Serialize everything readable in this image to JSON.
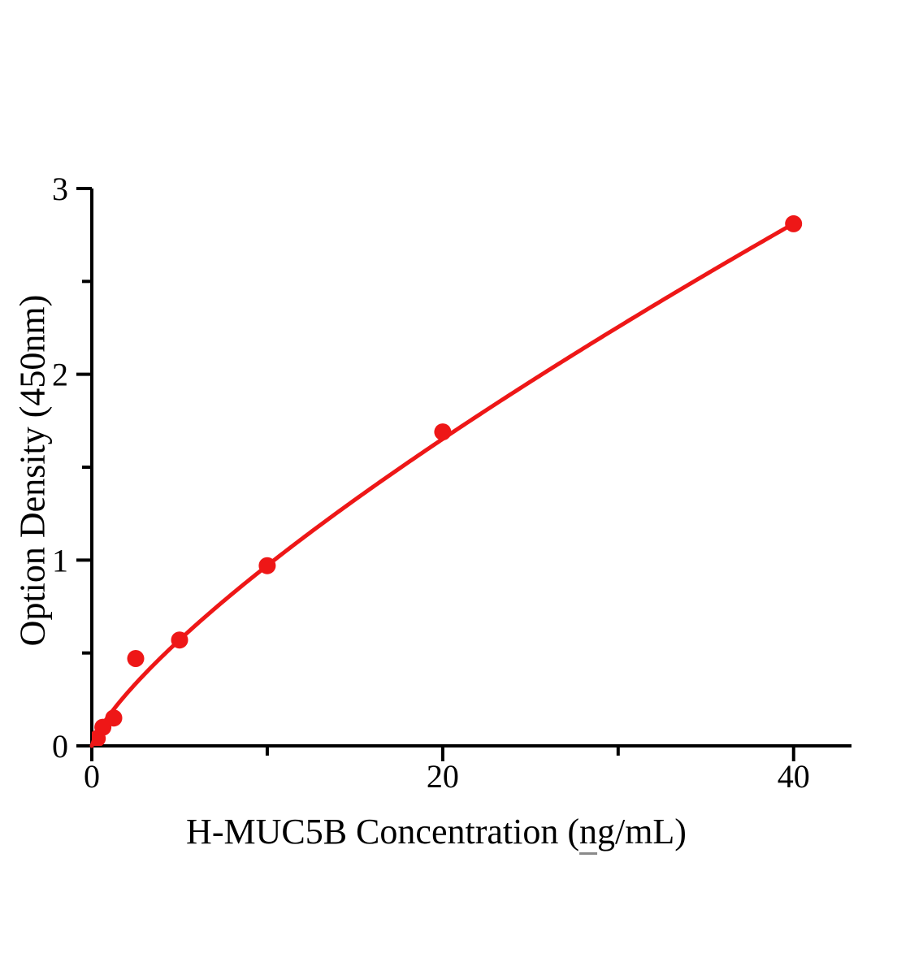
{
  "window": {
    "background_color": "#ffffff"
  },
  "chart_data": {
    "type": "scatter",
    "title": "",
    "xlabel": "H-MUC5B Concentration (ng/mL)",
    "xlabel_parts": {
      "pre": "H-MUC5B Concentration (",
      "underlined": "n",
      "post": "g/mL)"
    },
    "ylabel": "Option Density (450nm)",
    "xlim": [
      0,
      43.3
    ],
    "ylim": [
      0,
      3
    ],
    "x_major_ticks": [
      0,
      20,
      40
    ],
    "x_minor_ticks": [
      10,
      30
    ],
    "y_major_ticks": [
      0,
      1,
      2,
      3
    ],
    "y_minor_ticks": [
      0.5,
      1.5,
      2.5
    ],
    "points": [
      {
        "x": 0.31,
        "y": 0.04
      },
      {
        "x": 0.63,
        "y": 0.1
      },
      {
        "x": 1.25,
        "y": 0.15
      },
      {
        "x": 2.5,
        "y": 0.47
      },
      {
        "x": 5,
        "y": 0.57
      },
      {
        "x": 10,
        "y": 0.97
      },
      {
        "x": 20,
        "y": 1.69
      },
      {
        "x": 40,
        "y": 2.81
      }
    ],
    "fit_curve": {
      "type": "power",
      "equation": "y = 0.166 * x^0.767",
      "a": 0.166,
      "b": 0.767,
      "x_start": 0,
      "x_end": 40
    },
    "colors": {
      "series": "#ee1717",
      "axis": "#000000",
      "text": "#000000"
    },
    "grid": false,
    "legend": false
  }
}
